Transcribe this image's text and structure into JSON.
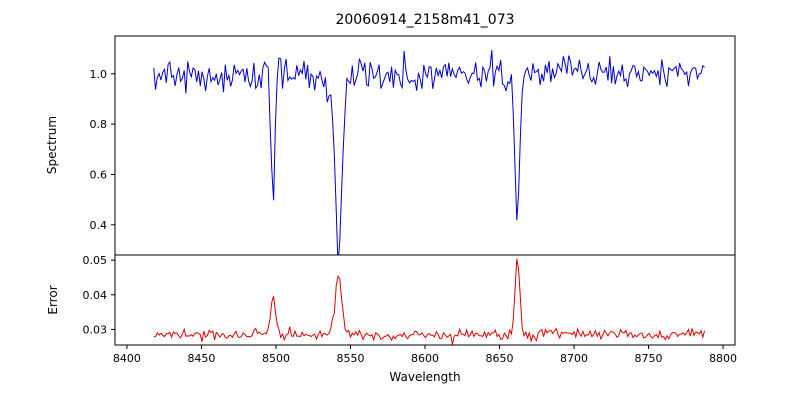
{
  "figure": {
    "title": "20060914_2158m41_073",
    "xlabel": "Wavelength",
    "ylabel_top": "Spectrum",
    "ylabel_bottom": "Error"
  },
  "chart_data": {
    "type": "line",
    "title": "20060914_2158m41_073",
    "xlabel": "Wavelength",
    "x_range": [
      8418,
      8788
    ],
    "x_step": 1.2,
    "xlim": [
      8392,
      8808
    ],
    "xticks": [
      8400,
      8450,
      8500,
      8550,
      8600,
      8650,
      8700,
      8750,
      8800
    ],
    "seed": 20060914,
    "panels": [
      {
        "name": "spectrum",
        "ylabel": "Spectrum",
        "color": "#0000cc",
        "ylim": [
          0.28,
          1.15
        ],
        "yticks": [
          0.4,
          0.6,
          0.8,
          1.0
        ],
        "continuum": 1.0,
        "noise_sigma": 0.033,
        "absorption_lines": [
          {
            "center": 8498,
            "depth": 0.47,
            "width": 1.3
          },
          {
            "center": 8542,
            "depth": 0.66,
            "width": 2.0,
            "wing_depth": 0.1,
            "wing_width": 6
          },
          {
            "center": 8662,
            "depth": 0.57,
            "width": 1.6
          }
        ]
      },
      {
        "name": "error",
        "ylabel": "Error",
        "color": "#dd0000",
        "ylim": [
          0.0255,
          0.0515
        ],
        "yticks": [
          0.03,
          0.04,
          0.05
        ],
        "baseline": 0.0285,
        "noise_sigma": 0.0008,
        "peaks": [
          {
            "center": 8498,
            "height": 0.0115,
            "width": 1.5
          },
          {
            "center": 8542,
            "height": 0.0175,
            "width": 2.2
          },
          {
            "center": 8662,
            "height": 0.022,
            "width": 1.5
          }
        ]
      }
    ]
  }
}
